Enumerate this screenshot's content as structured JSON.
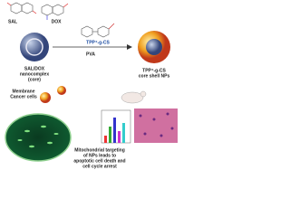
{
  "molecules": {
    "sal": "SAL",
    "dox": "DOX"
  },
  "core": {
    "label": [
      "SAL/DOX",
      "nanocomplex",
      "(core)"
    ]
  },
  "polymer": {
    "label": "TPP⁺-g-CS",
    "pva": "PVA"
  },
  "nps": {
    "label": [
      "TPP⁺-g-CS",
      "core shell NPs"
    ]
  },
  "cells": {
    "label": [
      "Membrane",
      "Cancer cells"
    ]
  },
  "outcome": {
    "label": [
      "Mitochondrial targeting",
      "of NPs leads to",
      "apoptotic cell death and",
      "cell cycle arrest"
    ]
  }
}
